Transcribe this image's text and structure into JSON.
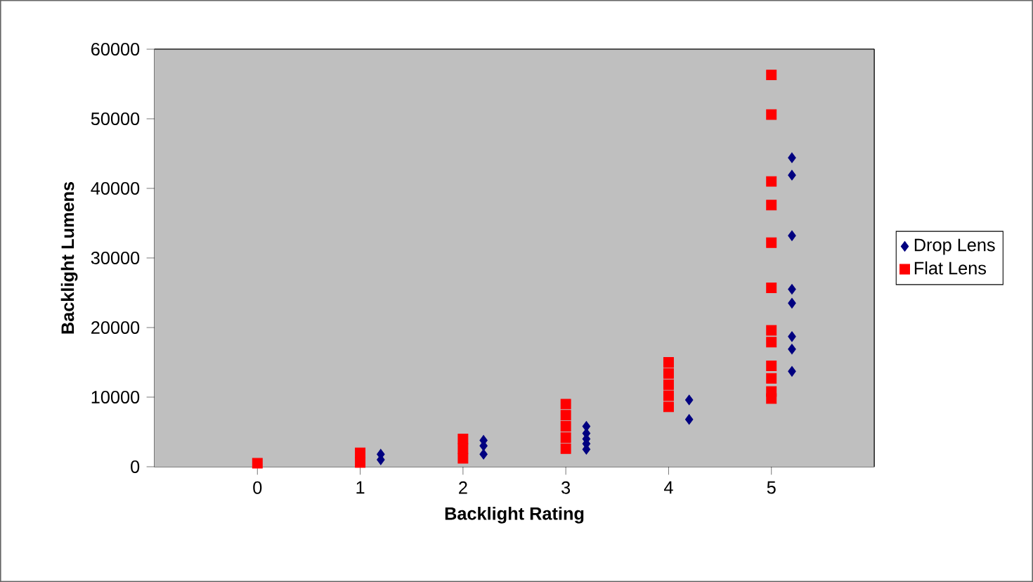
{
  "chart_data": {
    "type": "scatter",
    "xlabel": "Backlight Rating",
    "ylabel": "Backlight Lumens",
    "xlim": [
      -1,
      6
    ],
    "ylim": [
      0,
      60000
    ],
    "xticks": [
      0,
      1,
      2,
      3,
      4,
      5
    ],
    "yticks": [
      0,
      10000,
      20000,
      30000,
      40000,
      50000,
      60000
    ],
    "grid": false,
    "legend": "right",
    "series": [
      {
        "name": "Drop Lens",
        "color": "#000080",
        "marker": "diamond",
        "x": [
          1.2,
          1.2,
          2.2,
          2.2,
          2.2,
          3.2,
          3.2,
          3.2,
          3.2,
          3.2,
          4.2,
          4.2,
          5.2,
          5.2,
          5.2,
          5.2,
          5.2,
          5.2,
          5.2,
          5.2
        ],
        "values": [
          1800,
          1000,
          3800,
          3000,
          1800,
          5800,
          4800,
          4000,
          3300,
          2500,
          9600,
          6800,
          44400,
          41900,
          33200,
          25500,
          23500,
          18700,
          16900,
          13700
        ]
      },
      {
        "name": "Flat Lens",
        "color": "#ff0000",
        "marker": "square",
        "x": [
          0,
          1,
          1,
          2,
          2,
          2,
          3,
          3,
          3,
          3,
          3,
          4,
          4,
          4,
          4,
          4,
          5,
          5,
          5,
          5,
          5,
          5,
          5,
          5,
          5,
          5,
          5,
          5
        ],
        "values": [
          500,
          2000,
          600,
          4000,
          2600,
          1200,
          9000,
          7400,
          5800,
          4200,
          2600,
          15000,
          13400,
          11800,
          10200,
          8600,
          56300,
          50600,
          41000,
          37600,
          32200,
          25700,
          19600,
          17900,
          14500,
          12700,
          10800,
          9800
        ]
      }
    ]
  }
}
